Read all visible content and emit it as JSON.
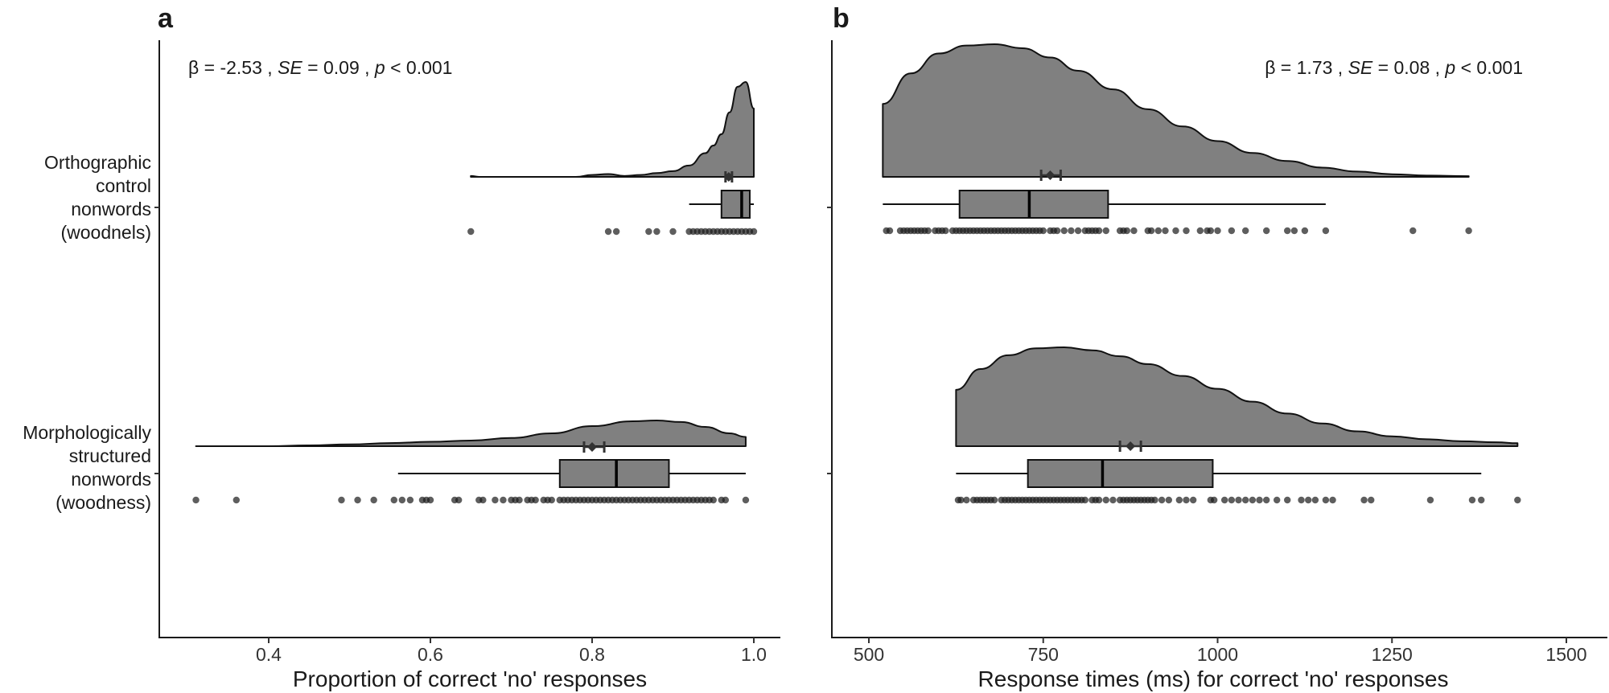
{
  "chart_data": [
    {
      "panel": "a",
      "type": "raincloud",
      "annotation": {
        "beta": "-2.53",
        "se": "0.09",
        "p": "< 0.001"
      },
      "xlabel": "Proportion of correct 'no' responses",
      "ylabel": "",
      "xlim": [
        0.27,
        1.04
      ],
      "xticks": [
        0.4,
        0.6,
        0.8,
        1.0
      ],
      "xtick_labels": [
        "0.4",
        "0.6",
        "0.8",
        "1.0"
      ],
      "grid": false,
      "categories": [
        {
          "label_lines": [
            "Orthographic",
            "control",
            "nonwords",
            "(woodnels)"
          ],
          "density": {
            "x": [
              0.65,
              0.66,
              0.7,
              0.78,
              0.8,
              0.82,
              0.84,
              0.86,
              0.88,
              0.9,
              0.92,
              0.94,
              0.95,
              0.96,
              0.97,
              0.98,
              0.99,
              1.0
            ],
            "y": [
              0.01,
              0.0,
              0.0,
              0.0,
              0.02,
              0.03,
              0.01,
              0.02,
              0.04,
              0.06,
              0.12,
              0.25,
              0.33,
              0.45,
              0.68,
              0.95,
              1.0,
              0.72
            ]
          },
          "mean": 0.969,
          "mean_ci": [
            0.965,
            0.973
          ],
          "box": {
            "whisker_low": 0.92,
            "q1": 0.96,
            "median": 0.985,
            "q3": 0.995,
            "whisker_high": 1.0
          },
          "points": [
            0.65,
            0.82,
            0.83,
            0.87,
            0.88,
            0.9,
            0.92,
            0.925,
            0.93,
            0.935,
            0.94,
            0.945,
            0.95,
            0.955,
            0.96,
            0.965,
            0.97,
            0.975,
            0.98,
            0.985,
            0.99,
            0.995,
            1.0
          ]
        },
        {
          "label_lines": [
            "Morphologically",
            "structured",
            "nonwords",
            "(woodness)"
          ],
          "density": {
            "x": [
              0.31,
              0.4,
              0.45,
              0.5,
              0.55,
              0.6,
              0.65,
              0.7,
              0.75,
              0.8,
              0.85,
              0.88,
              0.91,
              0.94,
              0.97,
              0.99
            ],
            "y": [
              0.0,
              0.0,
              0.03,
              0.07,
              0.12,
              0.17,
              0.22,
              0.32,
              0.5,
              0.78,
              0.97,
              1.0,
              0.94,
              0.75,
              0.5,
              0.36
            ]
          },
          "mean": 0.8,
          "mean_ci": [
            0.79,
            0.815
          ],
          "box": {
            "whisker_low": 0.56,
            "q1": 0.76,
            "median": 0.83,
            "q3": 0.895,
            "whisker_high": 0.99
          },
          "points": [
            0.31,
            0.36,
            0.49,
            0.51,
            0.53,
            0.555,
            0.565,
            0.575,
            0.59,
            0.595,
            0.6,
            0.63,
            0.635,
            0.66,
            0.665,
            0.68,
            0.69,
            0.7,
            0.705,
            0.71,
            0.72,
            0.725,
            0.73,
            0.74,
            0.745,
            0.75,
            0.76,
            0.765,
            0.77,
            0.775,
            0.78,
            0.785,
            0.79,
            0.795,
            0.8,
            0.805,
            0.81,
            0.815,
            0.82,
            0.825,
            0.83,
            0.835,
            0.84,
            0.845,
            0.85,
            0.855,
            0.86,
            0.865,
            0.87,
            0.875,
            0.88,
            0.885,
            0.89,
            0.895,
            0.9,
            0.905,
            0.91,
            0.915,
            0.92,
            0.925,
            0.93,
            0.935,
            0.94,
            0.945,
            0.95,
            0.96,
            0.965,
            0.99
          ]
        }
      ]
    },
    {
      "panel": "b",
      "type": "raincloud",
      "annotation": {
        "beta": "1.73",
        "se": "0.08",
        "p": "< 0.001"
      },
      "xlabel": "Response times (ms) for correct 'no' responses",
      "ylabel": "",
      "xlim": [
        455,
        1545
      ],
      "xticks": [
        500,
        750,
        1000,
        1250,
        1500
      ],
      "xtick_labels": [
        "500",
        "750",
        "1000",
        "1250",
        "1500"
      ],
      "grid": false,
      "categories": [
        {
          "label_lines": [
            "Orthographic",
            "control",
            "nonwords",
            "(woodnels)"
          ],
          "density": {
            "x": [
              520,
              560,
              600,
              640,
              680,
              720,
              760,
              800,
              850,
              900,
              950,
              1000,
              1050,
              1100,
              1150,
              1200,
              1250,
              1300,
              1360
            ],
            "y": [
              0.55,
              0.78,
              0.93,
              0.99,
              1.0,
              0.97,
              0.9,
              0.8,
              0.66,
              0.51,
              0.38,
              0.27,
              0.18,
              0.12,
              0.07,
              0.04,
              0.02,
              0.01,
              0.005
            ]
          },
          "mean": 760,
          "mean_ci": [
            747,
            775
          ],
          "box": {
            "whisker_low": 520,
            "q1": 630,
            "median": 730,
            "q3": 843,
            "whisker_high": 1155
          },
          "points": [
            525,
            530,
            545,
            550,
            555,
            560,
            565,
            570,
            575,
            580,
            585,
            595,
            600,
            605,
            610,
            620,
            625,
            630,
            635,
            640,
            645,
            650,
            655,
            660,
            665,
            670,
            675,
            680,
            685,
            690,
            695,
            700,
            705,
            710,
            715,
            720,
            725,
            730,
            735,
            740,
            745,
            750,
            760,
            765,
            770,
            780,
            790,
            800,
            810,
            815,
            820,
            825,
            830,
            840,
            860,
            865,
            870,
            880,
            900,
            905,
            915,
            925,
            940,
            955,
            975,
            985,
            990,
            1000,
            1020,
            1040,
            1070,
            1100,
            1110,
            1125,
            1155,
            1280,
            1360
          ]
        },
        {
          "label_lines": [
            "Morphologically",
            "structured",
            "nonwords",
            "(woodness)"
          ],
          "density": {
            "x": [
              625,
              660,
              700,
              740,
              780,
              820,
              860,
              900,
              950,
              1000,
              1050,
              1100,
              1150,
              1200,
              1250,
              1300,
              1350,
              1400,
              1430
            ],
            "y": [
              0.57,
              0.78,
              0.92,
              0.99,
              1.0,
              0.97,
              0.91,
              0.83,
              0.71,
              0.58,
              0.45,
              0.33,
              0.23,
              0.15,
              0.1,
              0.07,
              0.05,
              0.04,
              0.03
            ]
          },
          "mean": 875,
          "mean_ci": [
            860,
            890
          ],
          "box": {
            "whisker_low": 625,
            "q1": 728,
            "median": 835,
            "q3": 993,
            "whisker_high": 1378
          },
          "points": [
            628,
            632,
            640,
            650,
            655,
            660,
            665,
            670,
            675,
            680,
            690,
            695,
            700,
            705,
            710,
            715,
            720,
            725,
            730,
            735,
            740,
            745,
            750,
            755,
            760,
            765,
            770,
            775,
            780,
            785,
            790,
            795,
            800,
            805,
            810,
            820,
            825,
            830,
            840,
            850,
            860,
            865,
            870,
            875,
            880,
            885,
            890,
            895,
            900,
            905,
            910,
            920,
            930,
            945,
            955,
            965,
            990,
            995,
            1010,
            1020,
            1030,
            1040,
            1050,
            1060,
            1070,
            1085,
            1100,
            1120,
            1130,
            1140,
            1155,
            1165,
            1210,
            1220,
            1305,
            1365,
            1378,
            1430
          ]
        }
      ]
    }
  ]
}
